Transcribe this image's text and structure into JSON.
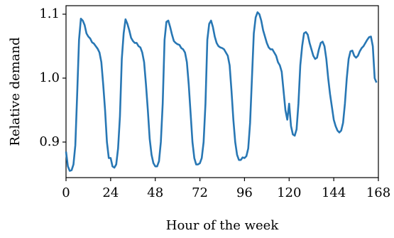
{
  "chart_data": {
    "type": "line",
    "xlabel": "Hour of the week",
    "ylabel": "Relative demand",
    "xlim": [
      0,
      168
    ],
    "ylim": [
      0.8444,
      1.1133
    ],
    "xticks": [
      0,
      24,
      48,
      72,
      96,
      120,
      144,
      168
    ],
    "yticks": [
      0.9,
      {
        "value": 1,
        "label": "1.0"
      },
      1.1
    ],
    "grid": false,
    "x": [
      0,
      1,
      2,
      3,
      4,
      5,
      6,
      7,
      8,
      9,
      10,
      11,
      12,
      13,
      14,
      15,
      16,
      17,
      18,
      19,
      20,
      21,
      22,
      23,
      24,
      25,
      26,
      27,
      28,
      29,
      30,
      31,
      32,
      33,
      34,
      35,
      36,
      37,
      38,
      39,
      40,
      41,
      42,
      43,
      44,
      45,
      46,
      47,
      48,
      49,
      50,
      51,
      52,
      53,
      54,
      55,
      56,
      57,
      58,
      59,
      60,
      61,
      62,
      63,
      64,
      65,
      66,
      67,
      68,
      69,
      70,
      71,
      72,
      73,
      74,
      75,
      76,
      77,
      78,
      79,
      80,
      81,
      82,
      83,
      84,
      85,
      86,
      87,
      88,
      89,
      90,
      91,
      92,
      93,
      94,
      95,
      96,
      97,
      98,
      99,
      100,
      101,
      102,
      103,
      104,
      105,
      106,
      107,
      108,
      109,
      110,
      111,
      112,
      113,
      114,
      115,
      116,
      117,
      118,
      119,
      120,
      121,
      122,
      123,
      124,
      125,
      126,
      127,
      128,
      129,
      130,
      131,
      132,
      133,
      134,
      135,
      136,
      137,
      138,
      139,
      140,
      141,
      142,
      143,
      144,
      145,
      146,
      147,
      148,
      149,
      150,
      151,
      152,
      153,
      154,
      155,
      156,
      157,
      158,
      159,
      160,
      161,
      162,
      163,
      164,
      165,
      166,
      167
    ],
    "series": [
      {
        "color": "#2877b4",
        "values": [
          0.885,
          0.862,
          0.855,
          0.856,
          0.865,
          0.895,
          0.975,
          1.06,
          1.093,
          1.09,
          1.083,
          1.07,
          1.065,
          1.062,
          1.056,
          1.054,
          1.05,
          1.046,
          1.04,
          1.025,
          0.99,
          0.95,
          0.9,
          0.875,
          0.875,
          0.862,
          0.86,
          0.865,
          0.89,
          0.94,
          1.03,
          1.07,
          1.092,
          1.085,
          1.075,
          1.063,
          1.058,
          1.055,
          1.055,
          1.05,
          1.048,
          1.04,
          1.025,
          0.99,
          0.95,
          0.905,
          0.88,
          0.867,
          0.862,
          0.862,
          0.87,
          0.9,
          0.96,
          1.06,
          1.088,
          1.09,
          1.08,
          1.068,
          1.058,
          1.055,
          1.053,
          1.052,
          1.047,
          1.045,
          1.04,
          1.025,
          0.99,
          0.945,
          0.9,
          0.875,
          0.865,
          0.865,
          0.867,
          0.875,
          0.9,
          0.96,
          1.06,
          1.085,
          1.09,
          1.08,
          1.065,
          1.055,
          1.05,
          1.048,
          1.047,
          1.045,
          1.04,
          1.035,
          1.02,
          0.98,
          0.935,
          0.9,
          0.88,
          0.872,
          0.872,
          0.876,
          0.875,
          0.878,
          0.89,
          0.93,
          1.0,
          1.07,
          1.095,
          1.103,
          1.1,
          1.09,
          1.075,
          1.065,
          1.055,
          1.048,
          1.045,
          1.045,
          1.04,
          1.035,
          1.025,
          1.02,
          1.01,
          0.98,
          0.95,
          0.935,
          0.96,
          0.925,
          0.912,
          0.91,
          0.92,
          0.96,
          1.02,
          1.05,
          1.07,
          1.072,
          1.068,
          1.055,
          1.045,
          1.035,
          1.03,
          1.032,
          1.045,
          1.055,
          1.057,
          1.05,
          1.03,
          1.0,
          0.975,
          0.955,
          0.935,
          0.925,
          0.918,
          0.915,
          0.918,
          0.93,
          0.96,
          1.0,
          1.03,
          1.042,
          1.043,
          1.035,
          1.032,
          1.035,
          1.042,
          1.047,
          1.05,
          1.055,
          1.06,
          1.064,
          1.065,
          1.05,
          1.0,
          0.993
        ]
      }
    ]
  }
}
